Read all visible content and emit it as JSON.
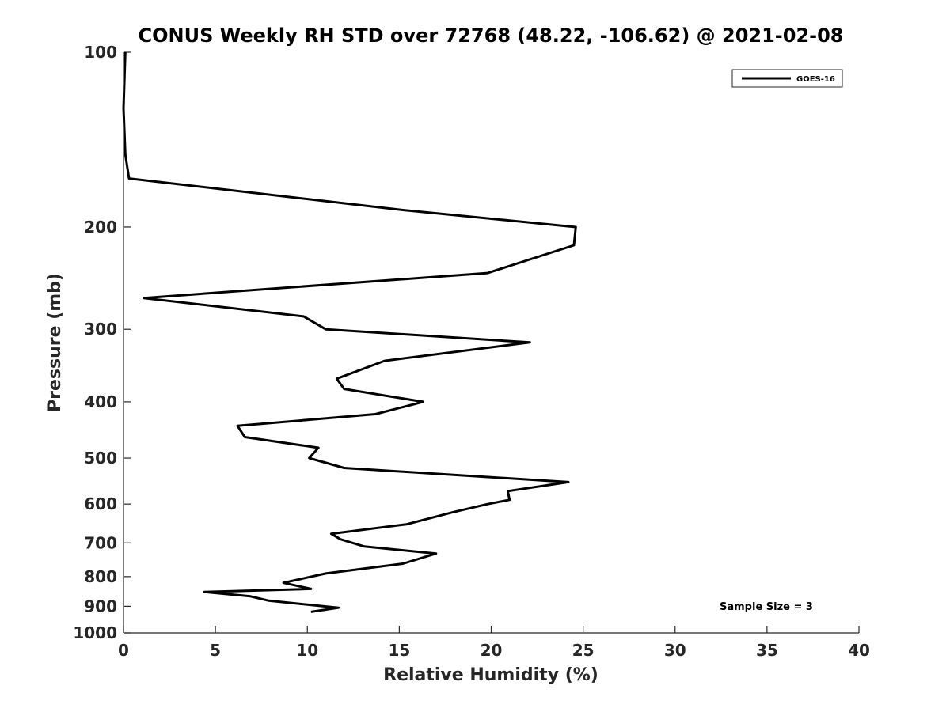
{
  "chart_data": {
    "type": "line",
    "title": "CONUS Weekly RH STD over 72768 (48.22, -106.62) @ 2021-02-08",
    "xlabel": "Relative Humidity (%)",
    "ylabel": "Pressure (mb)",
    "xlim": [
      0,
      40
    ],
    "ylim": [
      100,
      1000
    ],
    "y_scale": "log",
    "y_reversed": true,
    "xticks": [
      0,
      5,
      10,
      15,
      20,
      25,
      30,
      35,
      40
    ],
    "yticks": [
      100,
      200,
      300,
      400,
      500,
      600,
      700,
      800,
      900,
      1000
    ],
    "grid": false,
    "legend_position": "top-right",
    "series": [
      {
        "name": "GOES-16",
        "color": "#000000",
        "x": [
          0.1,
          0.0,
          0.1,
          0.3,
          15.2,
          24.6,
          24.5,
          19.8,
          1.1,
          9.8,
          11.0,
          22.1,
          14.2,
          11.6,
          12.0,
          16.3,
          13.7,
          6.2,
          6.6,
          10.6,
          10.1,
          12.0,
          24.2,
          20.9,
          21.0,
          19.8,
          17.9,
          15.4,
          11.3,
          11.8,
          13.1,
          17.0,
          15.2,
          11.0,
          8.7,
          10.2,
          4.4,
          6.9,
          7.9,
          11.7,
          10.2
        ],
        "y": [
          100,
          125,
          150,
          165,
          187,
          200,
          215,
          240,
          265,
          285,
          300,
          316,
          340,
          365,
          380,
          400,
          420,
          440,
          460,
          480,
          500,
          520,
          550,
          570,
          590,
          600,
          620,
          650,
          675,
          690,
          710,
          730,
          760,
          790,
          820,
          840,
          850,
          865,
          880,
          905,
          920
        ]
      }
    ],
    "annotations": [
      "Sample Size = 3"
    ]
  }
}
